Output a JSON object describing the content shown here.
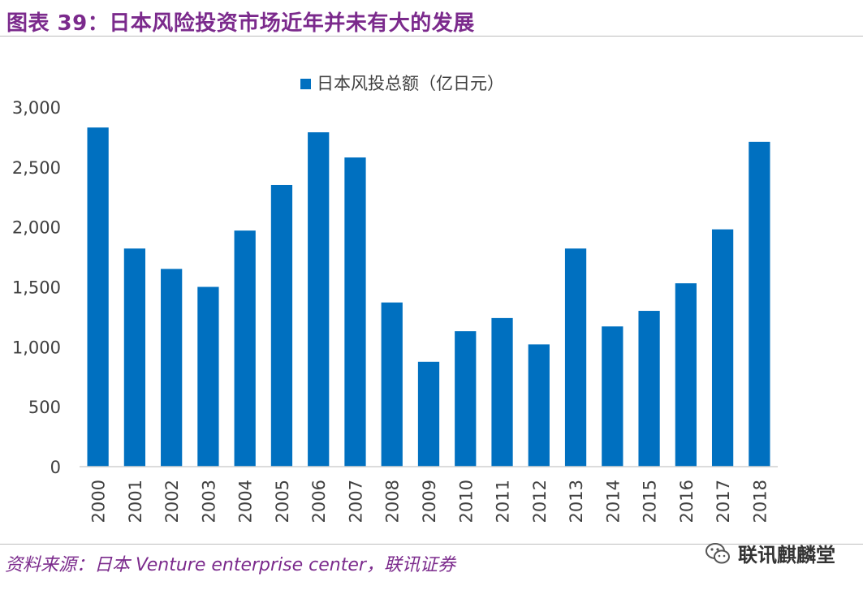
{
  "figure": {
    "title": "图表 39：日本风险投资市场近年并未有大的发展",
    "source": "资料来源：日本 Venture enterprise center，联讯证券",
    "watermark": "联讯麒麟堂"
  },
  "colors": {
    "bar": "#0070c0",
    "title": "#7b2a8c",
    "axis": "#d0d0d0",
    "tick_text": "#404040"
  },
  "chart_data": {
    "type": "bar",
    "title": "",
    "legend": "日本风投总额（亿日元）",
    "legend_position": "top-center",
    "xlabel": "",
    "ylabel": "",
    "ylim": [
      0,
      3000
    ],
    "yticks": [
      0,
      500,
      1000,
      1500,
      2000,
      2500,
      3000
    ],
    "ytick_labels": [
      "0",
      "500",
      "1,000",
      "1,500",
      "2,000",
      "2,500",
      "3,000"
    ],
    "grid": false,
    "categories": [
      "2000",
      "2001",
      "2002",
      "2003",
      "2004",
      "2005",
      "2006",
      "2007",
      "2008",
      "2009",
      "2010",
      "2011",
      "2012",
      "2013",
      "2014",
      "2015",
      "2016",
      "2017",
      "2018"
    ],
    "series": [
      {
        "name": "日本风投总额（亿日元）",
        "values": [
          2830,
          1820,
          1650,
          1500,
          1970,
          2350,
          2790,
          2580,
          1370,
          875,
          1130,
          1240,
          1020,
          1820,
          1170,
          1300,
          1530,
          1980,
          2710
        ]
      }
    ]
  }
}
